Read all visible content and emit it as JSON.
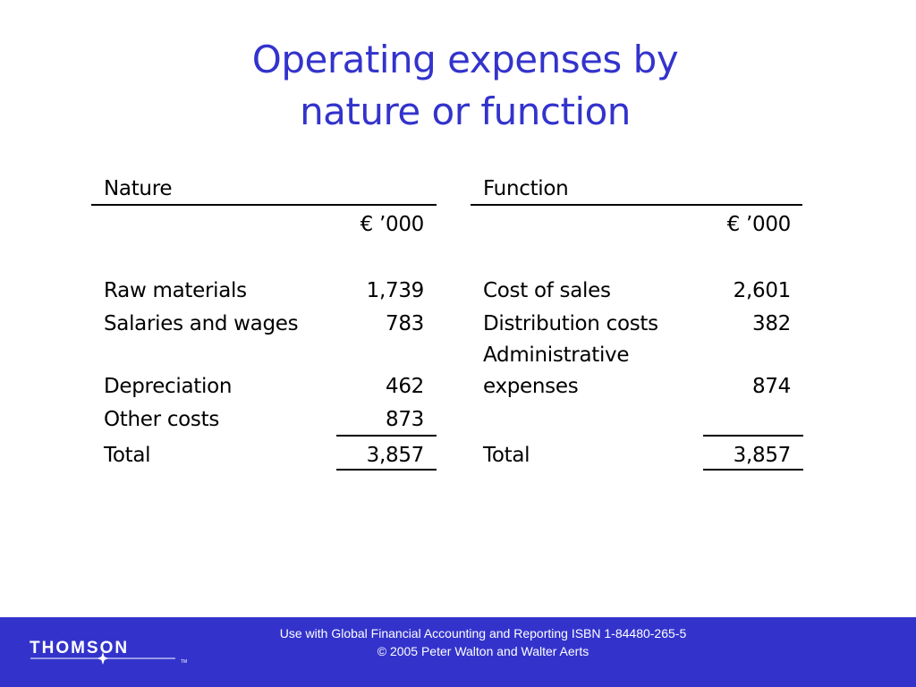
{
  "title": {
    "line1": "Operating expenses by",
    "line2": "nature or function"
  },
  "nature": {
    "heading": "Nature",
    "unit": "€ ’000",
    "rows": [
      {
        "label": "Raw materials",
        "value": "1,739"
      },
      {
        "label": "Salaries and wages",
        "value": "783"
      },
      {
        "label": "Depreciation",
        "value": "462"
      },
      {
        "label": "Other costs",
        "value": "873"
      }
    ],
    "total_label": "Total",
    "total_value": "3,857"
  },
  "function": {
    "heading": "Function",
    "unit": "€ ’000",
    "rows": [
      {
        "label": "Cost of sales",
        "value": "2,601"
      },
      {
        "label": "Distribution costs",
        "value": "382"
      },
      {
        "label_line1": "Administrative",
        "label_line2": "expenses",
        "value": "874"
      }
    ],
    "total_label": "Total",
    "total_value": "3,857"
  },
  "footer": {
    "line1": "Use with Global Financial Accounting and Reporting ISBN 1-84480-265-5",
    "line2": "© 2005 Peter Walton and Walter Aerts",
    "logo_text": "THOMSON",
    "logo_tm": "TM",
    "logo_icon": "star-icon",
    "colors": {
      "band": "#3333cc",
      "title": "#3333cc"
    }
  }
}
